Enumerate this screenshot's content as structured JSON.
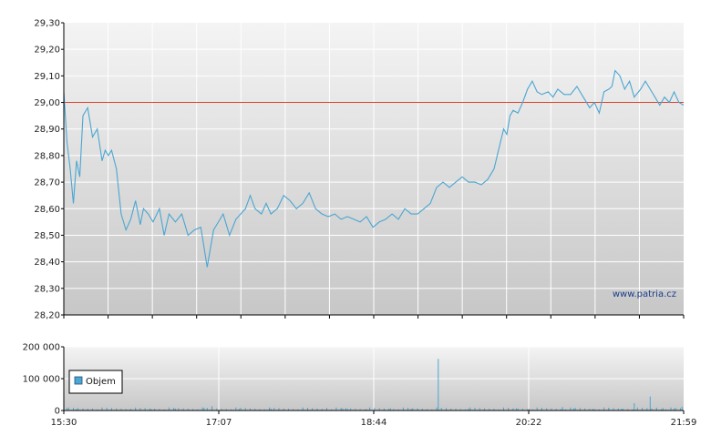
{
  "branding": {
    "watermark": "www.patria.cz"
  },
  "colors": {
    "price_line": "#4aa6d2",
    "reference_line": "#e0412a",
    "volume_bars": "#4aa6d2",
    "plot_bg_top": "#f4f4f4",
    "plot_bg_bottom": "#c7c7c7",
    "grid": "#ffffff",
    "axis": "#000000"
  },
  "chart_data": [
    {
      "type": "line",
      "name": "price",
      "x_ticks": [
        "15:30",
        "17:07",
        "18:44",
        "20:22",
        "21:59"
      ],
      "x_range": [
        0,
        389
      ],
      "ylim": [
        28.2,
        29.3
      ],
      "y_ticks": [
        "29,30",
        "29,20",
        "29,10",
        "29,00",
        "28,90",
        "28,80",
        "28,70",
        "28,60",
        "28,50",
        "28,40",
        "28,30",
        "28,20"
      ],
      "y_values": [
        29.3,
        29.2,
        29.1,
        29.0,
        28.9,
        28.8,
        28.7,
        28.6,
        28.5,
        28.4,
        28.3,
        28.2
      ],
      "reference_line": 29.0,
      "grid": true,
      "series": [
        {
          "x": [
            0,
            2,
            4,
            6,
            8,
            10,
            12,
            15,
            18,
            21,
            24,
            26,
            28,
            30,
            33,
            36,
            39,
            42,
            45,
            48,
            50,
            53,
            56,
            60,
            63,
            66,
            70,
            74,
            78,
            82,
            86,
            90,
            94,
            97,
            100,
            104,
            108,
            111,
            114,
            117,
            120,
            124,
            127,
            130,
            134,
            138,
            142,
            146,
            150,
            154,
            158,
            162,
            166,
            170,
            174,
            178,
            182,
            186,
            190,
            194,
            198,
            202,
            206,
            210,
            214,
            218,
            222,
            226,
            230,
            234,
            238,
            242,
            246,
            250,
            254,
            258,
            262,
            266,
            270,
            274,
            276,
            278,
            280,
            282,
            285,
            288,
            291,
            294,
            297,
            300,
            304,
            307,
            310,
            314,
            318,
            322,
            326,
            330,
            333,
            336,
            339,
            342,
            344,
            346,
            349,
            352,
            355,
            358,
            362,
            365,
            368,
            371,
            374,
            377,
            380,
            383,
            386,
            389
          ],
          "y": [
            29.04,
            28.85,
            28.75,
            28.62,
            28.78,
            28.72,
            28.95,
            28.98,
            28.87,
            28.9,
            28.78,
            28.82,
            28.8,
            28.82,
            28.75,
            28.58,
            28.52,
            28.56,
            28.63,
            28.54,
            28.6,
            28.58,
            28.55,
            28.6,
            28.5,
            28.58,
            28.55,
            28.58,
            28.5,
            28.52,
            28.53,
            28.38,
            28.52,
            28.55,
            28.58,
            28.5,
            28.56,
            28.58,
            28.6,
            28.65,
            28.6,
            28.58,
            28.62,
            28.58,
            28.6,
            28.65,
            28.63,
            28.6,
            28.62,
            28.66,
            28.6,
            28.58,
            28.57,
            28.58,
            28.56,
            28.57,
            28.56,
            28.55,
            28.57,
            28.53,
            28.55,
            28.56,
            28.58,
            28.56,
            28.6,
            28.58,
            28.58,
            28.6,
            28.62,
            28.68,
            28.7,
            28.68,
            28.7,
            28.72,
            28.7,
            28.7,
            28.69,
            28.71,
            28.75,
            28.85,
            28.9,
            28.88,
            28.95,
            28.97,
            28.96,
            29.0,
            29.05,
            29.08,
            29.04,
            29.03,
            29.04,
            29.02,
            29.05,
            29.03,
            29.03,
            29.06,
            29.02,
            28.98,
            29.0,
            28.96,
            29.04,
            29.05,
            29.06,
            29.12,
            29.1,
            29.05,
            29.08,
            29.02,
            29.05,
            29.08,
            29.05,
            29.02,
            28.99,
            29.02,
            29.0,
            29.04,
            29.0,
            28.99
          ]
        }
      ]
    },
    {
      "type": "bar",
      "name": "volume",
      "legend": [
        "Objem"
      ],
      "x_ticks": [
        "15:30",
        "17:07",
        "18:44",
        "20:22",
        "21:59"
      ],
      "x_range": [
        0,
        389
      ],
      "ylim": [
        0,
        200000
      ],
      "y_ticks": [
        "200 000",
        "100 000",
        "0"
      ],
      "y_values": [
        200000,
        100000,
        0
      ],
      "series": [
        {
          "name": "Objem",
          "x": [
            2,
            8,
            18,
            30,
            42,
            55,
            70,
            88,
            93,
            110,
            130,
            150,
            165,
            175,
            178,
            190,
            205,
            218,
            222,
            235,
            240,
            254,
            270,
            284,
            292,
            300,
            313,
            320,
            332,
            342,
            350,
            358,
            368,
            372,
            376,
            383,
            388
          ],
          "values": [
            8000,
            5000,
            6000,
            7000,
            5000,
            4000,
            6000,
            9000,
            14000,
            5000,
            6000,
            5000,
            8000,
            6000,
            5000,
            4000,
            7000,
            5000,
            6000,
            162000,
            5000,
            6000,
            5000,
            7000,
            5000,
            6000,
            11000,
            7000,
            5000,
            8000,
            6000,
            23000,
            44000,
            9000,
            8000,
            6000,
            12000
          ]
        }
      ]
    }
  ]
}
